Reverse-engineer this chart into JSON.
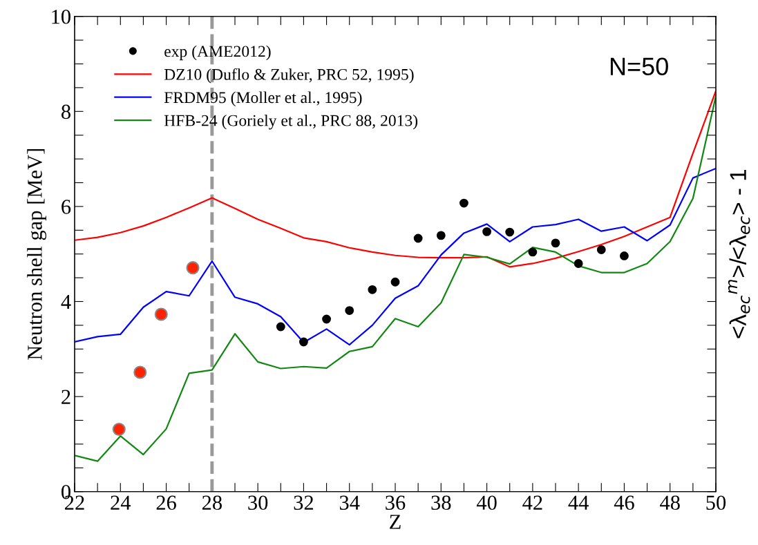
{
  "chart_data": {
    "type": "line",
    "xlabel": "Z",
    "ylabel": "Neutron shell gap [MeV]",
    "y2label": "<λ$_{ec}$$^{m}$>/<λ$_{ec}$> - 1",
    "x": [
      22,
      23,
      24,
      25,
      26,
      27,
      28,
      29,
      30,
      31,
      32,
      33,
      34,
      35,
      36,
      37,
      38,
      39,
      40,
      41,
      42,
      43,
      44,
      45,
      46,
      47,
      48,
      49,
      50
    ],
    "series": [
      {
        "name": "exp (AME2012)",
        "type": "scatter",
        "color": "#000000",
        "marker": "circle",
        "x": [
          31,
          32,
          33,
          34,
          35,
          36,
          37,
          38,
          39,
          40,
          41,
          42,
          43,
          44,
          45,
          46
        ],
        "values": [
          3.47,
          3.15,
          3.63,
          3.81,
          4.25,
          4.41,
          5.33,
          5.39,
          6.07,
          5.47,
          5.46,
          5.04,
          5.23,
          4.8,
          5.09,
          4.96
        ]
      },
      {
        "name": "DZ10 (Duflo & Zuker, PRC 52, 1995)",
        "color": "#ff0000",
        "values": [
          5.29,
          5.35,
          5.45,
          5.59,
          5.77,
          5.97,
          6.18,
          5.96,
          5.73,
          5.54,
          5.34,
          5.26,
          5.13,
          5.04,
          4.97,
          4.93,
          4.92,
          4.92,
          4.94,
          4.73,
          4.8,
          4.91,
          5.05,
          5.2,
          5.37,
          5.57,
          5.77,
          7.12,
          8.43
        ]
      },
      {
        "name": "FRDM95 (Moller et al., 1995)",
        "color": "#0000ff",
        "values": [
          3.15,
          3.26,
          3.31,
          3.88,
          4.21,
          4.12,
          4.85,
          4.09,
          3.95,
          3.68,
          3.14,
          3.42,
          3.09,
          3.5,
          4.07,
          4.33,
          4.98,
          5.44,
          5.63,
          5.26,
          5.57,
          5.62,
          5.73,
          5.48,
          5.57,
          5.28,
          5.61,
          6.6,
          6.8
        ]
      },
      {
        "name": "HFB-24 (Goriely et al., PRC 88, 2013)",
        "color": "#118811",
        "values": [
          0.76,
          0.64,
          1.17,
          0.78,
          1.32,
          2.49,
          2.56,
          3.32,
          2.73,
          2.59,
          2.63,
          2.6,
          2.95,
          3.05,
          3.64,
          3.47,
          3.97,
          4.99,
          4.93,
          4.79,
          5.14,
          5.04,
          4.75,
          4.61,
          4.61,
          4.8,
          5.26,
          6.17,
          8.32
        ]
      },
      {
        "type": "scatter",
        "color": "#ff2200",
        "marker": "circle",
        "x": [
          23.94,
          24.86,
          25.78,
          27.16
        ],
        "values": [
          1.31,
          2.51,
          3.73,
          4.71
        ]
      }
    ],
    "xlim": [
      22,
      50
    ],
    "ylim": [
      0,
      10
    ],
    "xticks": [
      22,
      {
        "value": 23,
        "label": null
      },
      24,
      {
        "value": 25,
        "label": null
      },
      26,
      {
        "value": 27,
        "label": null
      },
      28,
      {
        "value": 29,
        "label": null
      },
      30,
      {
        "value": 31,
        "label": null
      },
      32,
      {
        "value": 33,
        "label": null
      },
      34,
      {
        "value": 35,
        "label": null
      },
      36,
      {
        "value": 37,
        "label": null
      },
      38,
      {
        "value": 39,
        "label": null
      },
      40,
      {
        "value": 41,
        "label": null
      },
      42,
      {
        "value": 43,
        "label": null
      },
      44,
      {
        "value": 45,
        "label": null
      },
      46,
      {
        "value": 47,
        "label": null
      },
      48,
      {
        "value": 49,
        "label": null
      },
      50
    ],
    "yticks": [
      0,
      {
        "value": 0.5,
        "label": null
      },
      {
        "value": 1,
        "label": null
      },
      {
        "value": 1.5,
        "label": null
      },
      2,
      {
        "value": 2.5,
        "label": null
      },
      {
        "value": 3,
        "label": null
      },
      {
        "value": 3.5,
        "label": null
      },
      4,
      {
        "value": 4.5,
        "label": null
      },
      {
        "value": 5,
        "label": null
      },
      {
        "value": 5.5,
        "label": null
      },
      6,
      {
        "value": 6.5,
        "label": null
      },
      {
        "value": 7,
        "label": null
      },
      {
        "value": 7.5,
        "label": null
      },
      8,
      {
        "value": 8.5,
        "label": null
      },
      {
        "value": 9,
        "label": null
      },
      {
        "value": 9.5,
        "label": null
      },
      10
    ],
    "ref_lines": [
      {
        "axis": "x",
        "value": 28,
        "label": null,
        "color": "#999999",
        "line_style": "dashed"
      }
    ],
    "annotations": [
      "N=50"
    ],
    "legend": "top left",
    "grid": false,
    "line_style": "solid"
  }
}
